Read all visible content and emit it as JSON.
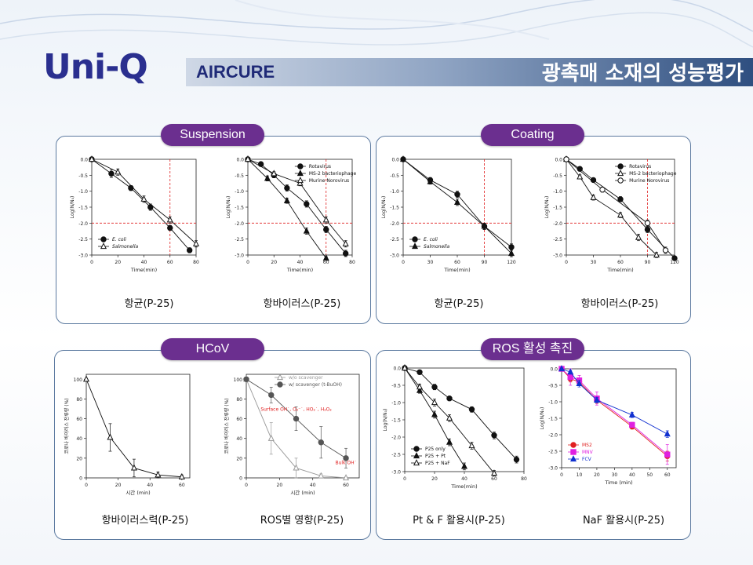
{
  "header": {
    "logo": "Uni-Q",
    "brand": "AIRCURE",
    "title": "광촉매 소재의 성능평가"
  },
  "sections": {
    "suspension": "Suspension",
    "coating": "Coating",
    "hcov": "HCoV",
    "ros": "ROS 활성 촉진"
  },
  "captions": {
    "s1": "항균(P-25)",
    "s2": "항바이러스(P-25)",
    "c1": "항균(P-25)",
    "c2": "항바이러스(P-25)",
    "h1": "항바이러스력(P-25)",
    "h2": "ROS별 영향(P-25)",
    "r1": "Pt & F 활용시(P-25)",
    "r2": "NaF 활용시(P-25)"
  },
  "colors": {
    "pill": "#6b2f8f",
    "panel_border": "#5c7aa0",
    "red": "#e02020",
    "magenta": "#e020e0",
    "blue": "#1030d0"
  },
  "chart_data": [
    {
      "id": "s1",
      "type": "line",
      "ylabel": "Log(N/N₀)",
      "xlabel": "Time(min)",
      "xlim": [
        0,
        80
      ],
      "ylim": [
        -3.0,
        0.0
      ],
      "xticks": [
        0,
        20,
        40,
        60,
        80
      ],
      "yticks": [
        0.0,
        -0.5,
        -1.0,
        -1.5,
        -2.0,
        -2.5,
        -3.0
      ],
      "ref_x": 60,
      "ref_y": -2.0,
      "legend_pos": "bottom-left",
      "series": [
        {
          "name": "E. coli",
          "marker": "filled-circle",
          "x": [
            0,
            15,
            30,
            45,
            60,
            75
          ],
          "y": [
            0,
            -0.45,
            -0.9,
            -1.5,
            -2.15,
            -2.85
          ],
          "err": [
            0,
            0.12,
            0.08,
            0.1,
            0.08,
            0.08
          ]
        },
        {
          "name": "Salmonella",
          "marker": "open-triangle",
          "x": [
            0,
            20,
            40,
            60,
            80
          ],
          "y": [
            0,
            -0.4,
            -1.25,
            -1.9,
            -2.65
          ],
          "err": [
            0,
            0.1,
            0.1,
            0.1,
            0.1
          ]
        }
      ]
    },
    {
      "id": "s2",
      "type": "line",
      "ylabel": "Log(N/N₀)",
      "xlabel": "Time(min)",
      "xlim": [
        0,
        80
      ],
      "ylim": [
        -3.0,
        0.0
      ],
      "xticks": [
        0,
        20,
        40,
        60,
        80
      ],
      "yticks": [
        0.0,
        -0.5,
        -1.0,
        -1.5,
        -2.0,
        -2.5,
        -3.0
      ],
      "ref_x": 60,
      "ref_y": -2.0,
      "legend_pos": "top-right",
      "series": [
        {
          "name": "Rotavirus",
          "marker": "filled-circle",
          "x": [
            0,
            10,
            20,
            30,
            45,
            60,
            75
          ],
          "y": [
            0,
            -0.15,
            -0.5,
            -0.9,
            -1.4,
            -2.2,
            -2.95
          ],
          "err": [
            0,
            0.05,
            0.08,
            0.1,
            0.1,
            0.1,
            0.1
          ]
        },
        {
          "name": "MS-2 bacteriophage",
          "marker": "filled-triangle",
          "x": [
            0,
            15,
            30,
            45,
            60
          ],
          "y": [
            0,
            -0.6,
            -1.3,
            -2.25,
            -3.1
          ],
          "err": [
            0,
            0.08,
            0.08,
            0.1,
            0.05
          ]
        },
        {
          "name": "Murine Norovirus",
          "marker": "open-triangle",
          "x": [
            0,
            20,
            40,
            60,
            75
          ],
          "y": [
            0,
            -0.45,
            -0.75,
            -1.9,
            -2.65
          ],
          "err": [
            0,
            0.06,
            0.08,
            0.1,
            0.1
          ]
        }
      ]
    },
    {
      "id": "c1",
      "type": "line",
      "ylabel": "Log(N/N₀)",
      "xlabel": "Time(min)",
      "xlim": [
        0,
        120
      ],
      "ylim": [
        -3.0,
        0.0
      ],
      "xticks": [
        0,
        30,
        60,
        90,
        120
      ],
      "yticks": [
        0.0,
        -0.5,
        -1.0,
        -1.5,
        -2.0,
        -2.5,
        -3.0
      ],
      "ref_x": 90,
      "ref_y": -2.0,
      "legend_pos": "bottom-left",
      "series": [
        {
          "name": "E. coli",
          "marker": "filled-circle",
          "x": [
            0,
            30,
            60,
            90,
            120
          ],
          "y": [
            0,
            -0.65,
            -1.1,
            -2.1,
            -2.75
          ],
          "err": [
            0,
            0.08,
            0.1,
            0.1,
            0.1
          ]
        },
        {
          "name": "Salmonella",
          "marker": "filled-triangle",
          "x": [
            0,
            30,
            60,
            90,
            120
          ],
          "y": [
            0,
            -0.7,
            -1.35,
            -2.1,
            -2.95
          ],
          "err": [
            0,
            0.08,
            0.1,
            0.1,
            0.1
          ]
        }
      ]
    },
    {
      "id": "c2",
      "type": "line",
      "ylabel": "Log(N/N₀)",
      "xlabel": "Time(min)",
      "xlim": [
        0,
        120
      ],
      "ylim": [
        -3.0,
        0.0
      ],
      "xticks": [
        0,
        30,
        60,
        90,
        120
      ],
      "yticks": [
        0.0,
        -0.5,
        -1.0,
        -1.5,
        -2.0,
        -2.5,
        -3.0
      ],
      "ref_x": 90,
      "ref_y": -2.0,
      "legend_pos": "top-right",
      "series": [
        {
          "name": "Rotavirus",
          "marker": "filled-circle",
          "x": [
            0,
            15,
            30,
            60,
            90,
            120
          ],
          "y": [
            0,
            -0.3,
            -0.65,
            -1.25,
            -2.2,
            -3.1
          ],
          "err": [
            0,
            0.05,
            0.05,
            0.08,
            0.1,
            0.06
          ]
        },
        {
          "name": "MS-2 bacteriophage",
          "marker": "open-triangle",
          "x": [
            0,
            15,
            30,
            60,
            80,
            100
          ],
          "y": [
            0,
            -0.55,
            -1.2,
            -1.75,
            -2.45,
            -3.0
          ],
          "err": [
            0,
            0.06,
            0.08,
            0.08,
            0.1,
            0.08
          ]
        },
        {
          "name": "Murine Norovirus",
          "marker": "open-circle",
          "x": [
            0,
            40,
            90,
            110
          ],
          "y": [
            0,
            -0.95,
            -2.0,
            -2.85
          ],
          "err": [
            0,
            0.08,
            0.1,
            0.1
          ]
        }
      ]
    },
    {
      "id": "h1",
      "type": "line",
      "ylabel": "코로나 바이러스 잔류량 (%)",
      "xlabel": "시간 (min)",
      "xlim": [
        0,
        65
      ],
      "ylim": [
        0,
        105
      ],
      "xticks": [
        0,
        20,
        40,
        60
      ],
      "yticks": [
        0,
        20,
        40,
        60,
        80,
        100
      ],
      "series": [
        {
          "name": "",
          "marker": "open-triangle",
          "x": [
            0,
            15,
            30,
            45,
            60
          ],
          "y": [
            100,
            41,
            10,
            3,
            1
          ],
          "err": [
            0,
            14,
            9,
            3,
            2
          ]
        }
      ]
    },
    {
      "id": "h2",
      "type": "line",
      "ylabel": "코로나 바이러스 잔류량 (%)",
      "xlabel": "시간 (min)",
      "xlim": [
        0,
        68
      ],
      "ylim": [
        0,
        105
      ],
      "xticks": [
        0,
        20,
        40,
        60
      ],
      "yticks": [
        0,
        20,
        40,
        60,
        80,
        100
      ],
      "legend_pos": "top-center",
      "annotations": [
        {
          "text": "Surface OH˙, O₂⁻˙, HO₂˙, H₂O₂",
          "x": 30,
          "y": 68
        },
        {
          "text": "Bulk OH˙",
          "x": 60,
          "y": 14
        }
      ],
      "series": [
        {
          "name": "w/o scavenger",
          "marker": "open-triangle",
          "color": "#999999",
          "x": [
            0,
            15,
            30,
            45,
            60
          ],
          "y": [
            100,
            40,
            10,
            2,
            0
          ],
          "err": [
            0,
            16,
            10,
            2,
            1
          ]
        },
        {
          "name": "w/ scavenger (t-BuOH)",
          "marker": "filled-circle",
          "color": "#555555",
          "x": [
            0,
            15,
            30,
            45,
            60
          ],
          "y": [
            100,
            84,
            60,
            36,
            20
          ],
          "err": [
            0,
            8,
            12,
            16,
            10
          ]
        }
      ]
    },
    {
      "id": "r1",
      "type": "line",
      "ylabel": "Log(N/N₀)",
      "xlabel": "Time(min)",
      "xlim": [
        0,
        80
      ],
      "ylim": [
        -3.0,
        0.0
      ],
      "xticks": [
        0,
        20,
        40,
        60,
        80
      ],
      "yticks": [
        0.0,
        -0.5,
        -1.0,
        -1.5,
        -2.0,
        -2.5,
        -3.0
      ],
      "legend_pos": "bottom-left",
      "series": [
        {
          "name": "P25 only",
          "marker": "filled-circle",
          "x": [
            0,
            10,
            20,
            30,
            45,
            60,
            75
          ],
          "y": [
            0,
            -0.12,
            -0.55,
            -0.88,
            -1.2,
            -1.95,
            -2.65
          ],
          "err": [
            0,
            0.06,
            0.08,
            0.06,
            0.08,
            0.1,
            0.1
          ]
        },
        {
          "name": "P25 + Pt",
          "marker": "filled-triangle",
          "x": [
            0,
            10,
            20,
            30,
            40
          ],
          "y": [
            0,
            -0.65,
            -1.35,
            -2.15,
            -2.85
          ],
          "err": [
            0,
            0.08,
            0.1,
            0.1,
            0.1
          ]
        },
        {
          "name": "P25 + NaF",
          "marker": "open-triangle",
          "x": [
            0,
            10,
            20,
            30,
            45,
            60
          ],
          "y": [
            0,
            -0.55,
            -1.0,
            -1.45,
            -2.25,
            -3.05
          ],
          "err": [
            0,
            0.08,
            0.1,
            0.1,
            0.1,
            0.08
          ]
        }
      ]
    },
    {
      "id": "r2",
      "type": "line",
      "ylabel": "Log(N/N₀)",
      "xlabel": "Time (min)",
      "xlim": [
        0,
        65
      ],
      "ylim": [
        -3.0,
        0.0
      ],
      "xticks": [
        0,
        10,
        20,
        30,
        40,
        50,
        60
      ],
      "yticks": [
        0.0,
        -0.5,
        -1.0,
        -1.5,
        -2.0,
        -2.5,
        -3.0
      ],
      "legend_pos": "bottom-left",
      "series": [
        {
          "name": "MS2",
          "marker": "filled-circle",
          "color": "#e02020",
          "x": [
            0,
            5,
            10,
            20,
            40,
            60
          ],
          "y": [
            0,
            -0.3,
            -0.4,
            -0.95,
            -1.75,
            -2.65
          ],
          "err": [
            0,
            0.1,
            0.1,
            0.1,
            0.08,
            0.15
          ]
        },
        {
          "name": "MNV",
          "marker": "filled-square",
          "color": "#e020e0",
          "x": [
            0,
            5,
            10,
            20,
            40,
            60
          ],
          "y": [
            0,
            -0.25,
            -0.35,
            -0.9,
            -1.7,
            -2.6
          ],
          "err": [
            0,
            0.25,
            0.15,
            0.2,
            0.08,
            0.3
          ]
        },
        {
          "name": "FCV",
          "marker": "filled-triangle",
          "color": "#1030d0",
          "x": [
            0,
            5,
            10,
            20,
            40,
            60
          ],
          "y": [
            0,
            -0.1,
            -0.45,
            -0.95,
            -1.4,
            -1.98
          ],
          "err": [
            0,
            0.05,
            0.1,
            0.08,
            0.08,
            0.1
          ]
        }
      ]
    }
  ]
}
